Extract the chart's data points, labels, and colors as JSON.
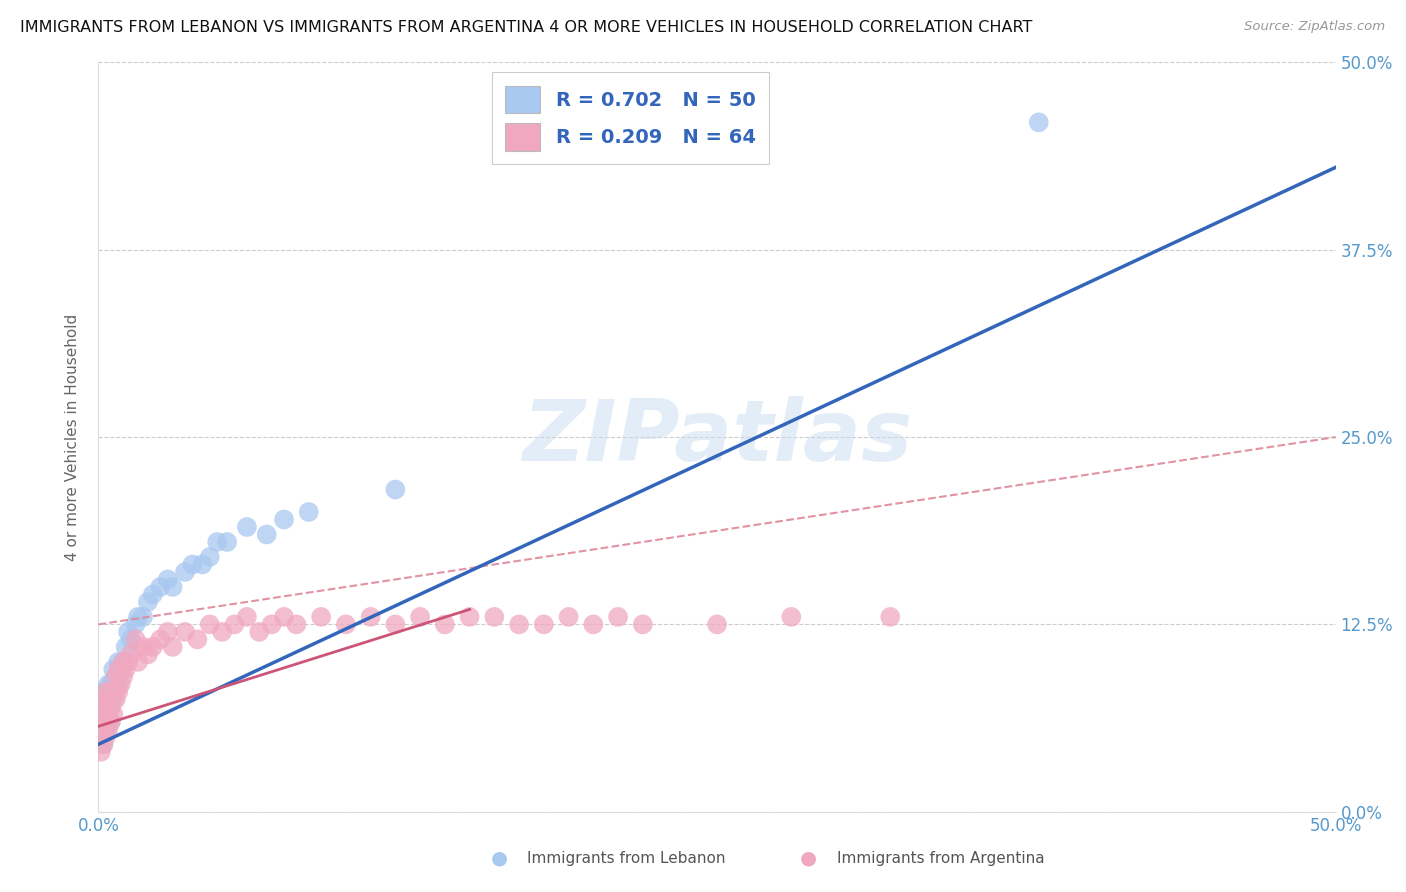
{
  "title": "IMMIGRANTS FROM LEBANON VS IMMIGRANTS FROM ARGENTINA 4 OR MORE VEHICLES IN HOUSEHOLD CORRELATION CHART",
  "source": "Source: ZipAtlas.com",
  "ylabel": "4 or more Vehicles in Household",
  "leb_label": "Immigrants from Lebanon",
  "arg_label": "Immigrants from Argentina",
  "xmin": 0.0,
  "xmax": 0.5,
  "ymin": 0.0,
  "ymax": 0.5,
  "ytick_vals": [
    0.0,
    0.125,
    0.25,
    0.375,
    0.5
  ],
  "ytick_labels": [
    "0.0%",
    "12.5%",
    "25.0%",
    "37.5%",
    "50.0%"
  ],
  "xtick_vals": [
    0.0,
    0.125,
    0.25,
    0.375,
    0.5
  ],
  "xtick_labels": [
    "0.0%",
    "",
    "",
    "",
    "50.0%"
  ],
  "color_lebanon": "#a8c8f0",
  "color_argentina": "#f0a8c0",
  "line_color_lebanon": "#3366bb",
  "line_color_argentina": "#cc5577",
  "line_color_dashed": "#dd8899",
  "watermark": "ZIPatlas",
  "watermark_color": "#c8ddf0",
  "legend_line1": "R = 0.702   N = 50",
  "legend_line2": "R = 0.209   N = 64",
  "leb_x": [
    0.001,
    0.001,
    0.001,
    0.002,
    0.002,
    0.002,
    0.002,
    0.002,
    0.003,
    0.003,
    0.003,
    0.003,
    0.004,
    0.004,
    0.004,
    0.005,
    0.005,
    0.005,
    0.006,
    0.006,
    0.006,
    0.007,
    0.007,
    0.008,
    0.008,
    0.009,
    0.01,
    0.011,
    0.012,
    0.013,
    0.015,
    0.016,
    0.018,
    0.02,
    0.022,
    0.025,
    0.028,
    0.03,
    0.035,
    0.038,
    0.042,
    0.045,
    0.048,
    0.052,
    0.06,
    0.068,
    0.075,
    0.085,
    0.12,
    0.38
  ],
  "leb_y": [
    0.05,
    0.06,
    0.07,
    0.045,
    0.055,
    0.065,
    0.075,
    0.08,
    0.055,
    0.065,
    0.07,
    0.08,
    0.06,
    0.07,
    0.085,
    0.06,
    0.07,
    0.085,
    0.075,
    0.085,
    0.095,
    0.08,
    0.09,
    0.085,
    0.1,
    0.095,
    0.1,
    0.11,
    0.12,
    0.115,
    0.125,
    0.13,
    0.13,
    0.14,
    0.145,
    0.15,
    0.155,
    0.15,
    0.16,
    0.165,
    0.165,
    0.17,
    0.18,
    0.18,
    0.19,
    0.185,
    0.195,
    0.2,
    0.215,
    0.46
  ],
  "arg_x": [
    0.001,
    0.001,
    0.001,
    0.002,
    0.002,
    0.002,
    0.002,
    0.003,
    0.003,
    0.003,
    0.003,
    0.004,
    0.004,
    0.004,
    0.005,
    0.005,
    0.005,
    0.006,
    0.006,
    0.007,
    0.007,
    0.008,
    0.008,
    0.009,
    0.01,
    0.01,
    0.011,
    0.012,
    0.013,
    0.015,
    0.016,
    0.018,
    0.02,
    0.022,
    0.025,
    0.028,
    0.03,
    0.035,
    0.04,
    0.045,
    0.05,
    0.055,
    0.06,
    0.065,
    0.07,
    0.075,
    0.08,
    0.09,
    0.1,
    0.11,
    0.12,
    0.13,
    0.14,
    0.15,
    0.16,
    0.17,
    0.18,
    0.19,
    0.2,
    0.21,
    0.22,
    0.25,
    0.28,
    0.32
  ],
  "arg_y": [
    0.04,
    0.055,
    0.065,
    0.045,
    0.055,
    0.06,
    0.075,
    0.05,
    0.06,
    0.07,
    0.08,
    0.055,
    0.065,
    0.075,
    0.06,
    0.07,
    0.08,
    0.065,
    0.08,
    0.075,
    0.09,
    0.08,
    0.095,
    0.085,
    0.09,
    0.1,
    0.095,
    0.1,
    0.105,
    0.115,
    0.1,
    0.11,
    0.105,
    0.11,
    0.115,
    0.12,
    0.11,
    0.12,
    0.115,
    0.125,
    0.12,
    0.125,
    0.13,
    0.12,
    0.125,
    0.13,
    0.125,
    0.13,
    0.125,
    0.13,
    0.125,
    0.13,
    0.125,
    0.13,
    0.13,
    0.125,
    0.125,
    0.13,
    0.125,
    0.13,
    0.125,
    0.125,
    0.13,
    0.13
  ],
  "leb_line_x0": 0.0,
  "leb_line_y0": 0.045,
  "leb_line_x1": 0.5,
  "leb_line_y1": 0.43,
  "arg_line_x0": 0.0,
  "arg_line_y0": 0.057,
  "arg_line_x1": 0.15,
  "arg_line_y1": 0.135,
  "dashed_line_x0": 0.0,
  "dashed_line_y0": 0.125,
  "dashed_line_x1": 0.5,
  "dashed_line_y1": 0.25
}
